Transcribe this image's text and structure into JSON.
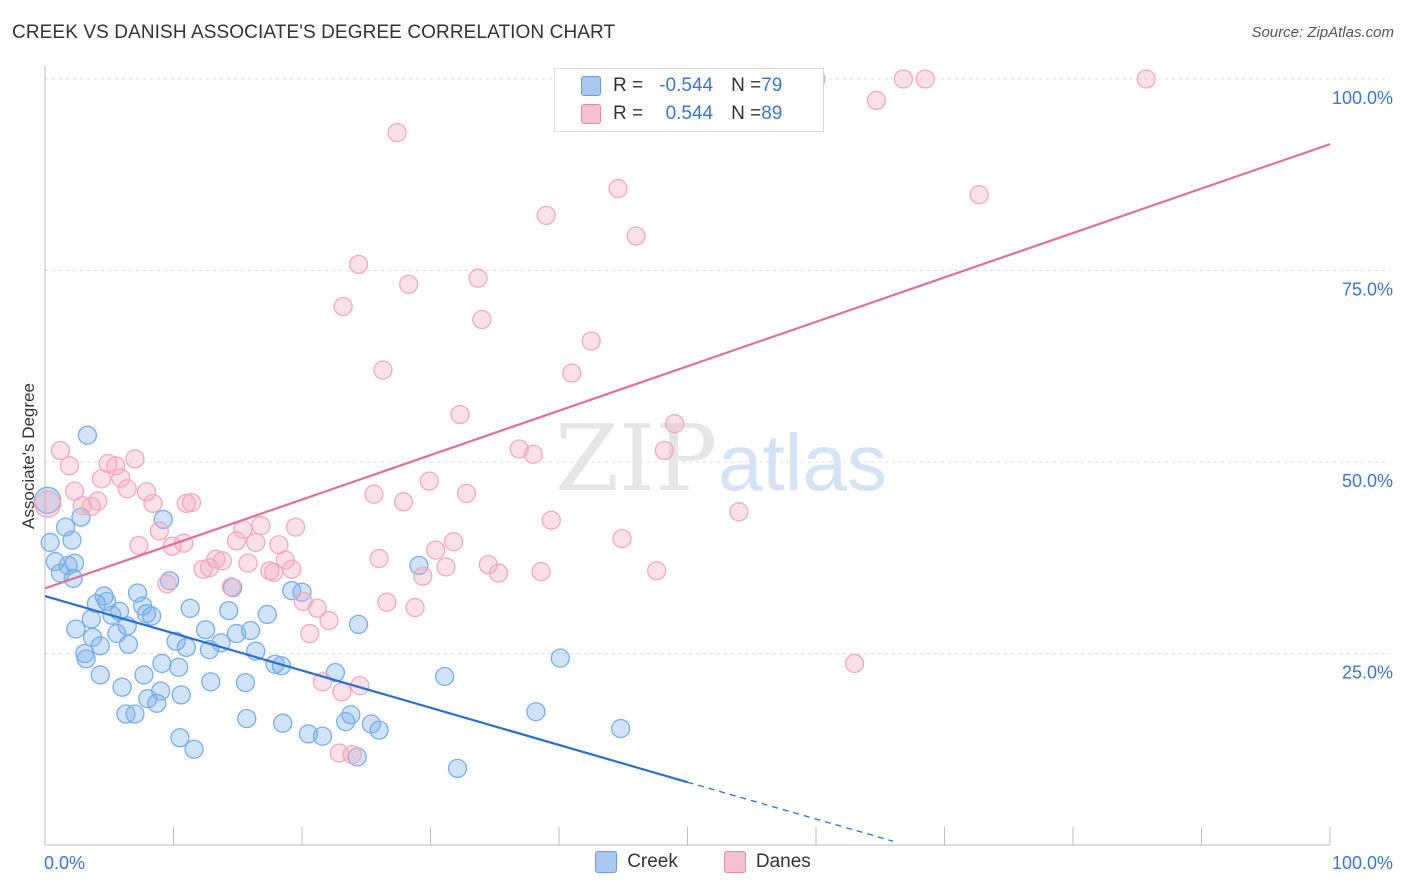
{
  "title": "CREEK VS DANISH ASSOCIATE'S DEGREE CORRELATION CHART",
  "source": "Source: ZipAtlas.com",
  "legend": {
    "rows": [
      {
        "r_label": "R = ",
        "r_value": "-0.544",
        "n_label": "N = ",
        "n_value": "79",
        "color": "#a8c8f0",
        "border": "#6a9fde"
      },
      {
        "r_label": "R = ",
        "r_value": "0.544",
        "n_label": "N = ",
        "n_value": "89",
        "color": "#f6c0d0",
        "border": "#e888a8"
      }
    ],
    "bottom": [
      {
        "label": "Creek",
        "color": "#a8c8f0",
        "border": "#6a9fde"
      },
      {
        "label": "Danes",
        "color": "#f6c0d0",
        "border": "#e888a8"
      }
    ]
  },
  "chart_data": {
    "type": "scatter",
    "title": "CREEK VS DANISH ASSOCIATE'S DEGREE CORRELATION CHART",
    "xlabel": "",
    "ylabel": "Associate's Degree",
    "xlim": [
      0,
      100
    ],
    "ylim": [
      0,
      100
    ],
    "x_tick_labels": [
      "0.0%",
      "100.0%"
    ],
    "y_tick_labels": [
      "25.0%",
      "50.0%",
      "75.0%",
      "100.0%"
    ],
    "y_ticks": [
      25,
      50,
      75,
      100
    ],
    "grid": true,
    "watermark": "ZIPatlas",
    "series": [
      {
        "name": "Creek",
        "color": "#7aaee8",
        "line_color": "#2a6fd0",
        "trend": {
          "x0": 0,
          "y0": 32.5,
          "x1": 50,
          "y1": 8.2,
          "dash_to_x": 66,
          "dash_to_y": 0.5
        },
        "points": [
          [
            0.2,
            45.0
          ],
          [
            0.4,
            39.5
          ],
          [
            0.8,
            37.0
          ],
          [
            1.2,
            35.5
          ],
          [
            1.8,
            36.5
          ],
          [
            2.1,
            39.8
          ],
          [
            1.6,
            41.5
          ],
          [
            2.8,
            42.8
          ],
          [
            3.3,
            53.5
          ],
          [
            2.3,
            36.8
          ],
          [
            2.2,
            34.8
          ],
          [
            3.6,
            29.5
          ],
          [
            4.0,
            31.5
          ],
          [
            4.6,
            32.5
          ],
          [
            2.4,
            28.2
          ],
          [
            3.1,
            25.0
          ],
          [
            3.7,
            27.1
          ],
          [
            4.3,
            26.0
          ],
          [
            4.8,
            31.8
          ],
          [
            3.2,
            24.3
          ],
          [
            4.3,
            22.2
          ],
          [
            5.2,
            30.0
          ],
          [
            5.8,
            30.5
          ],
          [
            5.6,
            27.6
          ],
          [
            6.4,
            28.6
          ],
          [
            6.5,
            26.2
          ],
          [
            7.2,
            32.9
          ],
          [
            7.6,
            31.2
          ],
          [
            7.9,
            30.2
          ],
          [
            8.3,
            29.9
          ],
          [
            9.1,
            23.7
          ],
          [
            9.2,
            42.5
          ],
          [
            9.7,
            34.5
          ],
          [
            10.2,
            26.6
          ],
          [
            10.4,
            23.2
          ],
          [
            11.0,
            25.8
          ],
          [
            11.3,
            30.9
          ],
          [
            12.5,
            28.1
          ],
          [
            12.8,
            25.5
          ],
          [
            13.7,
            26.4
          ],
          [
            14.3,
            30.6
          ],
          [
            14.6,
            33.6
          ],
          [
            14.9,
            27.6
          ],
          [
            6.0,
            20.6
          ],
          [
            7.7,
            22.2
          ],
          [
            8.0,
            19.1
          ],
          [
            8.7,
            18.5
          ],
          [
            9.0,
            20.1
          ],
          [
            10.6,
            19.6
          ],
          [
            12.9,
            21.3
          ],
          [
            15.6,
            21.2
          ],
          [
            16.4,
            25.3
          ],
          [
            17.3,
            30.1
          ],
          [
            17.9,
            23.6
          ],
          [
            18.4,
            23.4
          ],
          [
            19.2,
            33.2
          ],
          [
            6.3,
            17.1
          ],
          [
            7.0,
            17.1
          ],
          [
            10.5,
            14.0
          ],
          [
            11.6,
            12.5
          ],
          [
            15.7,
            16.5
          ],
          [
            18.5,
            15.9
          ],
          [
            20.5,
            14.5
          ],
          [
            21.6,
            14.2
          ],
          [
            22.6,
            22.5
          ],
          [
            23.4,
            16.1
          ],
          [
            23.8,
            17.0
          ],
          [
            24.3,
            11.5
          ],
          [
            25.4,
            15.8
          ],
          [
            26.0,
            15.0
          ],
          [
            24.4,
            28.8
          ],
          [
            29.1,
            36.5
          ],
          [
            31.1,
            22.0
          ],
          [
            32.1,
            10.0
          ],
          [
            38.2,
            17.4
          ],
          [
            40.1,
            24.4
          ],
          [
            44.8,
            15.2
          ],
          [
            20.0,
            33.0
          ],
          [
            16.0,
            28.0
          ]
        ]
      },
      {
        "name": "Danes",
        "color": "#f2a9bf",
        "line_color": "#e0709a",
        "trend": {
          "x0": 0,
          "y0": 33.5,
          "x1": 100,
          "y1": 91.5
        },
        "points": [
          [
            0.2,
            44.5
          ],
          [
            1.2,
            51.5
          ],
          [
            1.9,
            49.5
          ],
          [
            2.3,
            46.2
          ],
          [
            2.9,
            44.3
          ],
          [
            3.6,
            44.2
          ],
          [
            4.1,
            44.9
          ],
          [
            4.4,
            47.8
          ],
          [
            4.9,
            49.8
          ],
          [
            5.5,
            49.5
          ],
          [
            5.9,
            47.9
          ],
          [
            6.4,
            46.5
          ],
          [
            7.0,
            50.4
          ],
          [
            7.3,
            39.1
          ],
          [
            7.9,
            46.1
          ],
          [
            8.4,
            44.6
          ],
          [
            8.9,
            41.0
          ],
          [
            9.5,
            34.1
          ],
          [
            9.9,
            39.0
          ],
          [
            10.8,
            39.4
          ],
          [
            11.0,
            44.6
          ],
          [
            11.4,
            44.7
          ],
          [
            12.3,
            36.0
          ],
          [
            12.8,
            36.2
          ],
          [
            13.3,
            37.3
          ],
          [
            13.8,
            37.1
          ],
          [
            14.5,
            33.7
          ],
          [
            14.9,
            39.7
          ],
          [
            15.4,
            41.2
          ],
          [
            15.8,
            36.8
          ],
          [
            16.4,
            39.5
          ],
          [
            16.8,
            41.7
          ],
          [
            17.5,
            35.8
          ],
          [
            17.8,
            35.6
          ],
          [
            18.2,
            39.2
          ],
          [
            18.7,
            37.2
          ],
          [
            19.2,
            36.0
          ],
          [
            19.5,
            41.5
          ],
          [
            20.1,
            31.8
          ],
          [
            20.6,
            27.6
          ],
          [
            21.2,
            30.9
          ],
          [
            21.6,
            21.3
          ],
          [
            22.1,
            29.3
          ],
          [
            22.9,
            12.0
          ],
          [
            23.1,
            20.0
          ],
          [
            23.9,
            11.8
          ],
          [
            24.5,
            20.8
          ],
          [
            25.6,
            45.8
          ],
          [
            26.0,
            37.4
          ],
          [
            26.3,
            62.0
          ],
          [
            26.6,
            31.7
          ],
          [
            27.4,
            93.0
          ],
          [
            27.9,
            44.8
          ],
          [
            28.3,
            73.2
          ],
          [
            28.8,
            31.0
          ],
          [
            29.4,
            35.1
          ],
          [
            29.9,
            47.5
          ],
          [
            30.4,
            38.5
          ],
          [
            31.2,
            36.3
          ],
          [
            31.8,
            39.6
          ],
          [
            32.3,
            56.2
          ],
          [
            32.8,
            45.9
          ],
          [
            24.4,
            75.8
          ],
          [
            23.2,
            70.3
          ],
          [
            33.7,
            74.0
          ],
          [
            34.0,
            68.6
          ],
          [
            34.5,
            36.6
          ],
          [
            35.3,
            35.5
          ],
          [
            36.9,
            51.7
          ],
          [
            38.0,
            51.0
          ],
          [
            38.6,
            35.7
          ],
          [
            39.0,
            82.2
          ],
          [
            39.4,
            42.4
          ],
          [
            41.0,
            61.6
          ],
          [
            42.5,
            65.8
          ],
          [
            44.6,
            85.7
          ],
          [
            44.9,
            40.0
          ],
          [
            46.0,
            79.5
          ],
          [
            47.6,
            35.8
          ],
          [
            48.2,
            51.5
          ],
          [
            49.0,
            55.0
          ],
          [
            54.0,
            43.5
          ],
          [
            63.0,
            23.7
          ],
          [
            64.7,
            97.2
          ],
          [
            66.8,
            100.0
          ],
          [
            68.5,
            100.0
          ],
          [
            72.7,
            84.9
          ],
          [
            85.7,
            100.0
          ],
          [
            60.0,
            100.0
          ]
        ]
      }
    ]
  }
}
